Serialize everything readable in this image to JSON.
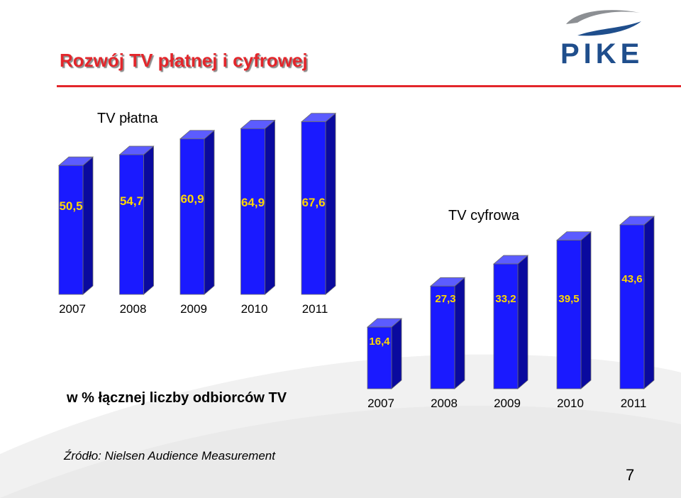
{
  "slide": {
    "title": "Rozwój TV płatnej i cyfrowej",
    "logo_text": "PIKE",
    "note": "w % łącznej liczby odbiorców TV",
    "source": "Źródło: Nielsen Audience Measurement",
    "page_number": "7"
  },
  "colors": {
    "bar_front": "#1a1aff",
    "bar_side": "#0a0a9e",
    "bar_top": "#5c5cff",
    "label": "#ffd700",
    "title": "#e3262b",
    "logo": "#1f4e8c"
  },
  "chart_data": [
    {
      "type": "bar",
      "title": "TV płatna",
      "categories": [
        "2007",
        "2008",
        "2009",
        "2010",
        "2011"
      ],
      "values": [
        50.5,
        54.7,
        60.9,
        64.9,
        67.6
      ],
      "value_labels": [
        "50,5",
        "54,7",
        "60,9",
        "64,9",
        "67,6"
      ],
      "xlabel": "",
      "ylabel": "",
      "grid": false,
      "legend": "none"
    },
    {
      "type": "bar",
      "title": "TV cyfrowa",
      "categories": [
        "2007",
        "2008",
        "2009",
        "2010",
        "2011"
      ],
      "values": [
        16.4,
        27.3,
        33.2,
        39.5,
        43.6
      ],
      "value_labels": [
        "16,4",
        "27,3",
        "33,2",
        "39,5",
        "43,6"
      ],
      "xlabel": "",
      "ylabel": "",
      "grid": false,
      "legend": "none"
    }
  ]
}
